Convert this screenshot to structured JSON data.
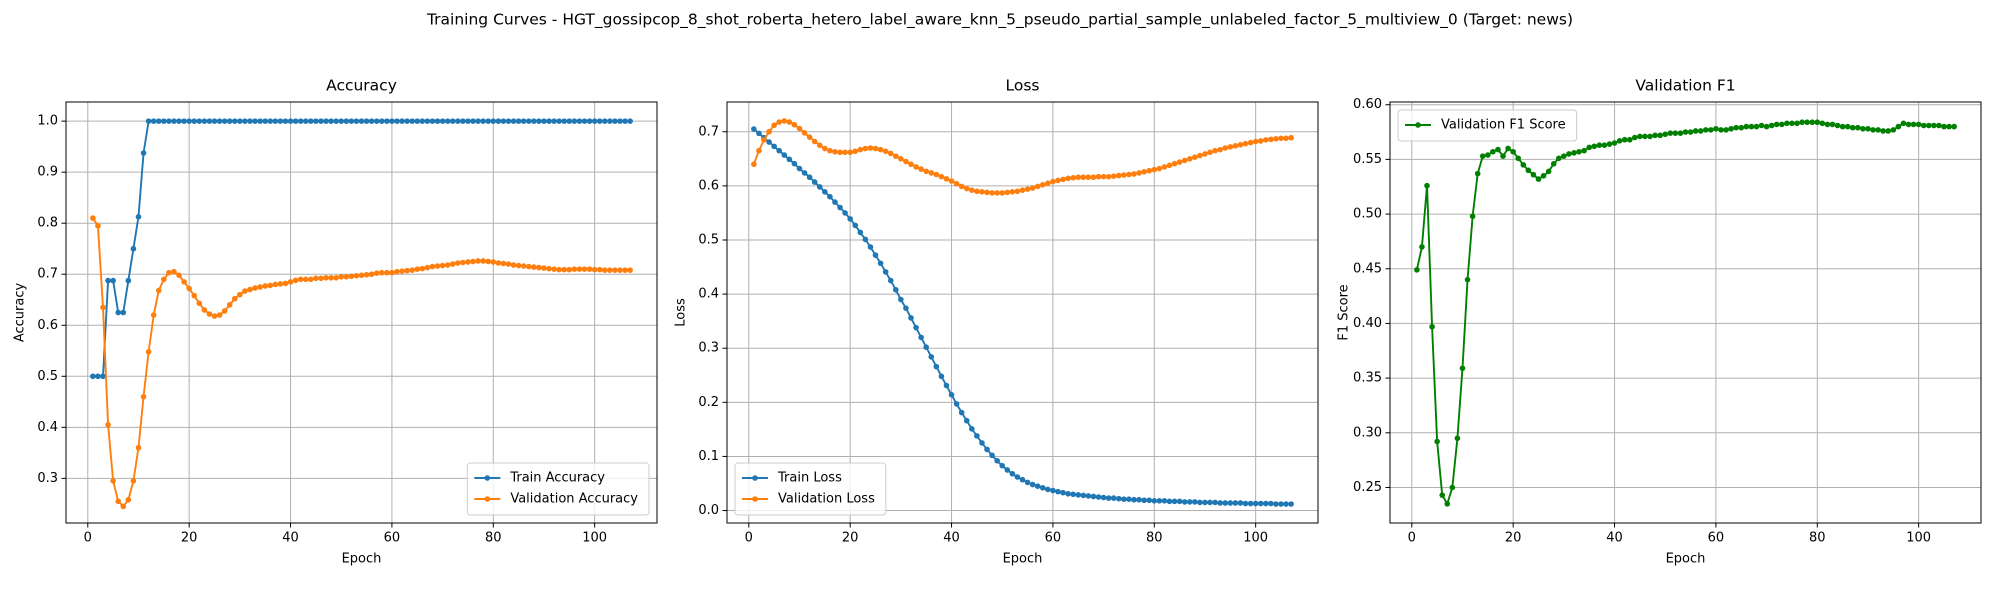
{
  "title": "Training Curves - HGT_gossipcop_8_shot_roberta_hetero_label_aware_knn_5_pseudo_partial_sample_unlabeled_factor_5_multiview_0 (Target: news)",
  "chart_data": [
    {
      "type": "line",
      "title": "Accuracy",
      "xlabel": "Epoch",
      "ylabel": "Accuracy",
      "x": [
        1,
        2,
        3,
        4,
        5,
        6,
        7,
        8,
        9,
        10,
        11,
        12,
        13,
        14,
        15,
        16,
        17,
        18,
        19,
        20,
        21,
        22,
        23,
        24,
        25,
        26,
        27,
        28,
        29,
        30,
        31,
        32,
        33,
        34,
        35,
        36,
        37,
        38,
        39,
        40,
        41,
        42,
        43,
        44,
        45,
        46,
        47,
        48,
        49,
        50,
        51,
        52,
        53,
        54,
        55,
        56,
        57,
        58,
        59,
        60,
        61,
        62,
        63,
        64,
        65,
        66,
        67,
        68,
        69,
        70,
        71,
        72,
        73,
        74,
        75,
        76,
        77,
        78,
        79,
        80,
        81,
        82,
        83,
        84,
        85,
        86,
        87,
        88,
        89,
        90,
        91,
        92,
        93,
        94,
        95,
        96,
        97,
        98,
        99,
        100,
        101,
        102,
        103,
        104,
        105,
        106,
        107
      ],
      "series": [
        {
          "name": "Train Accuracy",
          "color": "#1f77b4",
          "values": [
            0.5,
            0.5,
            0.5,
            0.6875,
            0.6875,
            0.625,
            0.625,
            0.6875,
            0.75,
            0.8125,
            0.9375,
            1,
            1,
            1,
            1,
            1,
            1,
            1,
            1,
            1,
            1,
            1,
            1,
            1,
            1,
            1,
            1,
            1,
            1,
            1,
            1,
            1,
            1,
            1,
            1,
            1,
            1,
            1,
            1,
            1,
            1,
            1,
            1,
            1,
            1,
            1,
            1,
            1,
            1,
            1,
            1,
            1,
            1,
            1,
            1,
            1,
            1,
            1,
            1,
            1,
            1,
            1,
            1,
            1,
            1,
            1,
            1,
            1,
            1,
            1,
            1,
            1,
            1,
            1,
            1,
            1,
            1,
            1,
            1,
            1,
            1,
            1,
            1,
            1,
            1,
            1,
            1,
            1,
            1,
            1,
            1,
            1,
            1,
            1,
            1,
            1,
            1,
            1,
            1,
            1,
            1,
            1,
            1,
            1,
            1,
            1,
            1
          ]
        },
        {
          "name": "Validation Accuracy",
          "color": "#ff7f0e",
          "values": [
            0.81,
            0.795,
            0.635,
            0.405,
            0.295,
            0.255,
            0.245,
            0.258,
            0.295,
            0.36,
            0.46,
            0.548,
            0.62,
            0.668,
            0.69,
            0.703,
            0.705,
            0.698,
            0.685,
            0.672,
            0.658,
            0.643,
            0.63,
            0.622,
            0.618,
            0.62,
            0.628,
            0.64,
            0.652,
            0.66,
            0.667,
            0.67,
            0.673,
            0.675,
            0.677,
            0.678,
            0.68,
            0.681,
            0.682,
            0.685,
            0.688,
            0.69,
            0.69,
            0.69,
            0.692,
            0.692,
            0.693,
            0.693,
            0.693,
            0.695,
            0.695,
            0.696,
            0.697,
            0.698,
            0.699,
            0.7,
            0.702,
            0.703,
            0.703,
            0.703,
            0.705,
            0.706,
            0.707,
            0.708,
            0.71,
            0.711,
            0.713,
            0.715,
            0.716,
            0.717,
            0.718,
            0.72,
            0.722,
            0.723,
            0.724,
            0.725,
            0.726,
            0.726,
            0.725,
            0.724,
            0.722,
            0.721,
            0.72,
            0.718,
            0.717,
            0.716,
            0.715,
            0.714,
            0.713,
            0.712,
            0.711,
            0.71,
            0.709,
            0.709,
            0.709,
            0.71,
            0.71,
            0.71,
            0.71,
            0.709,
            0.709,
            0.708,
            0.708,
            0.708,
            0.708,
            0.708,
            0.708
          ]
        }
      ],
      "xlim": [
        -4.3,
        112.3
      ],
      "xticks": [
        0,
        20,
        40,
        60,
        80,
        100
      ],
      "ylim": [
        0.2125,
        1.0375
      ],
      "yticks": [
        0.3,
        0.4,
        0.5,
        0.6,
        0.7,
        0.8,
        0.9,
        {
          "value": 1,
          "label": "1.0"
        }
      ],
      "grid": true,
      "legend": "lower right"
    },
    {
      "type": "line",
      "title": "Loss",
      "xlabel": "Epoch",
      "ylabel": "Loss",
      "x": [
        1,
        2,
        3,
        4,
        5,
        6,
        7,
        8,
        9,
        10,
        11,
        12,
        13,
        14,
        15,
        16,
        17,
        18,
        19,
        20,
        21,
        22,
        23,
        24,
        25,
        26,
        27,
        28,
        29,
        30,
        31,
        32,
        33,
        34,
        35,
        36,
        37,
        38,
        39,
        40,
        41,
        42,
        43,
        44,
        45,
        46,
        47,
        48,
        49,
        50,
        51,
        52,
        53,
        54,
        55,
        56,
        57,
        58,
        59,
        60,
        61,
        62,
        63,
        64,
        65,
        66,
        67,
        68,
        69,
        70,
        71,
        72,
        73,
        74,
        75,
        76,
        77,
        78,
        79,
        80,
        81,
        82,
        83,
        84,
        85,
        86,
        87,
        88,
        89,
        90,
        91,
        92,
        93,
        94,
        95,
        96,
        97,
        98,
        99,
        100,
        101,
        102,
        103,
        104,
        105,
        106,
        107
      ],
      "series": [
        {
          "name": "Train Loss",
          "color": "#1f77b4",
          "values": [
            0.705,
            0.697,
            0.689,
            0.681,
            0.673,
            0.665,
            0.657,
            0.649,
            0.641,
            0.632,
            0.624,
            0.616,
            0.607,
            0.598,
            0.589,
            0.58,
            0.57,
            0.56,
            0.55,
            0.539,
            0.527,
            0.514,
            0.501,
            0.487,
            0.472,
            0.457,
            0.441,
            0.425,
            0.408,
            0.39,
            0.374,
            0.356,
            0.338,
            0.32,
            0.302,
            0.284,
            0.266,
            0.248,
            0.231,
            0.214,
            0.197,
            0.181,
            0.166,
            0.151,
            0.138,
            0.125,
            0.113,
            0.102,
            0.092,
            0.083,
            0.075,
            0.068,
            0.062,
            0.057,
            0.052,
            0.048,
            0.045,
            0.042,
            0.039,
            0.037,
            0.035,
            0.033,
            0.031,
            0.03,
            0.029,
            0.028,
            0.027,
            0.026,
            0.025,
            0.024,
            0.023,
            0.023,
            0.022,
            0.021,
            0.021,
            0.02,
            0.02,
            0.019,
            0.019,
            0.018,
            0.018,
            0.018,
            0.017,
            0.017,
            0.017,
            0.016,
            0.016,
            0.016,
            0.015,
            0.015,
            0.015,
            0.015,
            0.014,
            0.014,
            0.014,
            0.014,
            0.014,
            0.013,
            0.013,
            0.013,
            0.013,
            0.013,
            0.013,
            0.012,
            0.012,
            0.012,
            0.012
          ]
        },
        {
          "name": "Validation Loss",
          "color": "#ff7f0e",
          "values": [
            0.64,
            0.665,
            0.685,
            0.7,
            0.712,
            0.718,
            0.72,
            0.718,
            0.713,
            0.706,
            0.698,
            0.69,
            0.682,
            0.675,
            0.669,
            0.665,
            0.663,
            0.662,
            0.662,
            0.662,
            0.664,
            0.667,
            0.669,
            0.67,
            0.669,
            0.667,
            0.664,
            0.66,
            0.655,
            0.65,
            0.645,
            0.64,
            0.635,
            0.631,
            0.627,
            0.624,
            0.621,
            0.617,
            0.613,
            0.609,
            0.604,
            0.599,
            0.595,
            0.592,
            0.59,
            0.589,
            0.588,
            0.587,
            0.587,
            0.587,
            0.588,
            0.589,
            0.59,
            0.592,
            0.594,
            0.596,
            0.599,
            0.602,
            0.605,
            0.608,
            0.61,
            0.612,
            0.614,
            0.615,
            0.616,
            0.616,
            0.616,
            0.616,
            0.617,
            0.617,
            0.617,
            0.618,
            0.619,
            0.62,
            0.621,
            0.622,
            0.624,
            0.626,
            0.628,
            0.63,
            0.632,
            0.635,
            0.638,
            0.641,
            0.644,
            0.647,
            0.65,
            0.653,
            0.656,
            0.659,
            0.662,
            0.665,
            0.667,
            0.67,
            0.672,
            0.674,
            0.676,
            0.678,
            0.68,
            0.682,
            0.683,
            0.685,
            0.686,
            0.687,
            0.688,
            0.688,
            0.689
          ]
        }
      ],
      "xlim": [
        -4.3,
        112.3
      ],
      "xticks": [
        0,
        20,
        40,
        60,
        80,
        100
      ],
      "ylim": [
        -0.023,
        0.755
      ],
      "yticks": [
        {
          "value": 0,
          "label": "0.0"
        },
        0.1,
        0.2,
        0.3,
        0.4,
        0.5,
        0.6,
        0.7
      ],
      "grid": true,
      "legend": "lower left"
    },
    {
      "type": "line",
      "title": "Validation F1",
      "xlabel": "Epoch",
      "ylabel": "F1 Score",
      "x": [
        1,
        2,
        3,
        4,
        5,
        6,
        7,
        8,
        9,
        10,
        11,
        12,
        13,
        14,
        15,
        16,
        17,
        18,
        19,
        20,
        21,
        22,
        23,
        24,
        25,
        26,
        27,
        28,
        29,
        30,
        31,
        32,
        33,
        34,
        35,
        36,
        37,
        38,
        39,
        40,
        41,
        42,
        43,
        44,
        45,
        46,
        47,
        48,
        49,
        50,
        51,
        52,
        53,
        54,
        55,
        56,
        57,
        58,
        59,
        60,
        61,
        62,
        63,
        64,
        65,
        66,
        67,
        68,
        69,
        70,
        71,
        72,
        73,
        74,
        75,
        76,
        77,
        78,
        79,
        80,
        81,
        82,
        83,
        84,
        85,
        86,
        87,
        88,
        89,
        90,
        91,
        92,
        93,
        94,
        95,
        96,
        97,
        98,
        99,
        100,
        101,
        102,
        103,
        104,
        105,
        106,
        107
      ],
      "series": [
        {
          "name": "Validation F1 Score",
          "color": "#008000",
          "values": [
            0.449,
            0.47,
            0.526,
            0.397,
            0.292,
            0.243,
            0.235,
            0.25,
            0.295,
            0.359,
            0.44,
            0.498,
            0.537,
            0.553,
            0.554,
            0.557,
            0.559,
            0.553,
            0.56,
            0.557,
            0.551,
            0.545,
            0.54,
            0.536,
            0.532,
            0.535,
            0.539,
            0.546,
            0.551,
            0.553,
            0.555,
            0.556,
            0.557,
            0.558,
            0.561,
            0.562,
            0.563,
            0.563,
            0.564,
            0.565,
            0.567,
            0.568,
            0.568,
            0.57,
            0.571,
            0.571,
            0.571,
            0.572,
            0.572,
            0.573,
            0.574,
            0.574,
            0.574,
            0.575,
            0.575,
            0.576,
            0.576,
            0.577,
            0.577,
            0.578,
            0.577,
            0.577,
            0.578,
            0.579,
            0.579,
            0.58,
            0.58,
            0.58,
            0.581,
            0.58,
            0.581,
            0.582,
            0.582,
            0.583,
            0.583,
            0.583,
            0.584,
            0.584,
            0.584,
            0.584,
            0.583,
            0.582,
            0.582,
            0.581,
            0.58,
            0.58,
            0.579,
            0.579,
            0.578,
            0.578,
            0.577,
            0.577,
            0.576,
            0.576,
            0.577,
            0.58,
            0.583,
            0.582,
            0.582,
            0.582,
            0.581,
            0.581,
            0.581,
            0.581,
            0.58,
            0.58,
            0.58
          ]
        }
      ],
      "xlim": [
        -4.3,
        112.3
      ],
      "xticks": [
        0,
        20,
        40,
        60,
        80,
        100
      ],
      "ylim": [
        0.2175,
        0.6025
      ],
      "yticks": [
        0.25,
        {
          "value": 0.3,
          "label": "0.30"
        },
        0.35,
        {
          "value": 0.4,
          "label": "0.40"
        },
        0.45,
        {
          "value": 0.5,
          "label": "0.50"
        },
        0.55,
        {
          "value": 0.6,
          "label": "0.60"
        }
      ],
      "grid": true,
      "legend": "upper left"
    }
  ]
}
